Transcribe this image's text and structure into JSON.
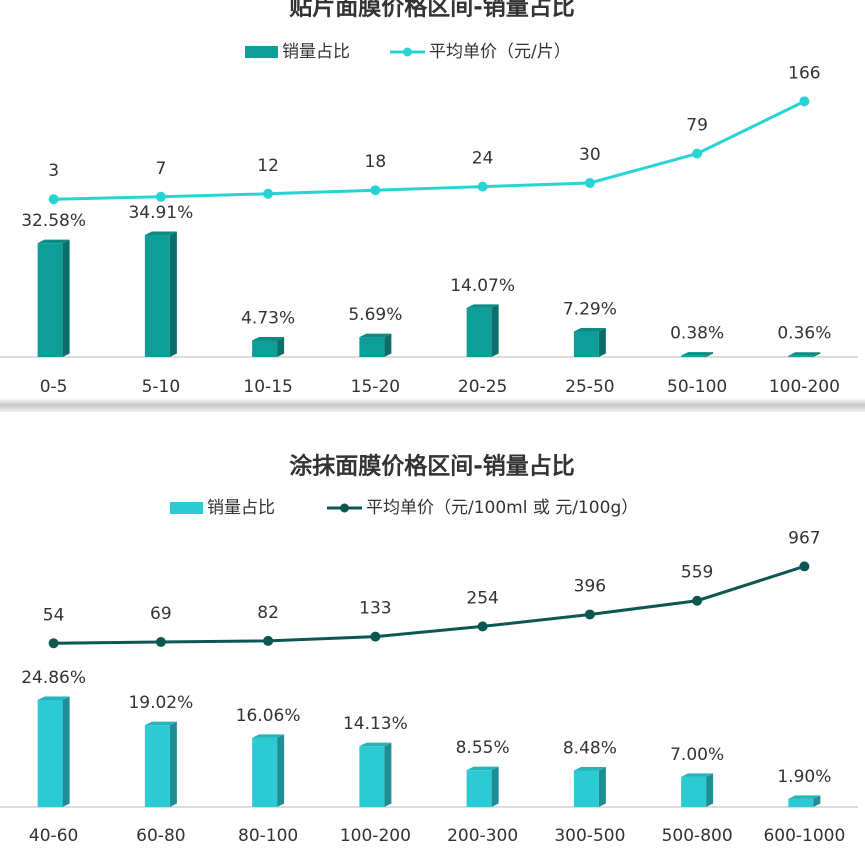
{
  "chart_data": [
    {
      "type": "bar",
      "title": "贴片面膜价格区间-销量占比",
      "categories": [
        "0-5",
        "5-10",
        "10-15",
        "15-20",
        "20-25",
        "25-50",
        "50-100",
        "100-200"
      ],
      "series": [
        {
          "name": "销量占比",
          "type": "bar",
          "color": "#0e9e97",
          "values": [
            32.58,
            34.91,
            4.73,
            5.69,
            14.07,
            7.29,
            0.38,
            0.36
          ],
          "value_labels": [
            "32.58%",
            "34.91%",
            "4.73%",
            "5.69%",
            "14.07%",
            "7.29%",
            "0.38%",
            "0.36%"
          ]
        },
        {
          "name": "平均单价（元/片）",
          "type": "line",
          "axis": "y2",
          "color": "#27d3d3",
          "values": [
            3,
            7,
            12,
            18,
            24,
            30,
            79,
            166
          ]
        }
      ],
      "ylim": [
        0,
        85
      ],
      "y2lim": [
        -260,
        235
      ]
    },
    {
      "type": "bar",
      "title": "涂抹面膜价格区间-销量占比",
      "categories": [
        "40-60",
        "60-80",
        "80-100",
        "100-200",
        "200-300",
        "300-500",
        "500-800",
        "600-1000"
      ],
      "series": [
        {
          "name": "销量占比",
          "type": "bar",
          "color": "#2ccbd3",
          "values": [
            24.86,
            19.02,
            16.06,
            14.13,
            8.55,
            8.48,
            7.0,
            1.9
          ],
          "value_labels": [
            "24.86%",
            "19.02%",
            "16.06%",
            "14.13%",
            "8.55%",
            "8.48%",
            "7.00%",
            "1.90%"
          ]
        },
        {
          "name": "平均单价（元/100ml 或 元/100g）",
          "type": "line",
          "axis": "y2",
          "color": "#0d5752",
          "values": [
            54,
            69,
            82,
            133,
            254,
            396,
            559,
            967
          ]
        }
      ],
      "ylim": [
        0,
        62
      ],
      "y2lim": [
        -1890,
        1280
      ]
    }
  ]
}
